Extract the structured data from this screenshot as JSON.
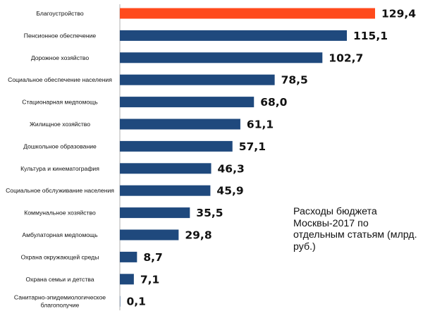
{
  "chart_data": {
    "type": "bar",
    "orientation": "horizontal",
    "title": "",
    "annotation": "Расходы бюджета Москвы-2017 по отдельным статьям (млрд. руб.)",
    "xlabel": "",
    "ylabel": "",
    "xlim": [
      0,
      129.4
    ],
    "grid": false,
    "legend": "none",
    "categories": [
      [
        "Благоустройство"
      ],
      [
        "Пенсионное обеспечение"
      ],
      [
        "Дорожное хозяйство"
      ],
      [
        "Социальное обеспечение населения"
      ],
      [
        "Стационарная медпомощь"
      ],
      [
        "Жилищное хозяйство"
      ],
      [
        "Дошкольное образование"
      ],
      [
        "Культура и кинематография"
      ],
      [
        "Социальное обслуживание населения"
      ],
      [
        "Коммунальное хозяйство"
      ],
      [
        "Амбулаторная медпомощь"
      ],
      [
        "Охрана окружающей среды"
      ],
      [
        "Охрана семьи и детства"
      ],
      [
        "Санитарно-эпидемиологическое",
        "благополучие"
      ]
    ],
    "values": [
      129.4,
      115.1,
      102.7,
      78.5,
      68.0,
      61.1,
      57.1,
      46.3,
      45.9,
      35.5,
      29.8,
      8.7,
      7.1,
      0.1
    ],
    "value_labels": [
      "129,4",
      "115,1",
      "102,7",
      "78,5",
      "68,0",
      "61,1",
      "57,1",
      "46,3",
      "45,9",
      "35,5",
      "29,8",
      "8,7",
      "7,1",
      "0,1"
    ],
    "colors": [
      "#ff4a1c",
      "#1f497d",
      "#1f497d",
      "#1f497d",
      "#1f497d",
      "#1f497d",
      "#1f497d",
      "#1f497d",
      "#1f497d",
      "#1f497d",
      "#1f497d",
      "#1f497d",
      "#1f497d",
      "#1f497d"
    ]
  }
}
